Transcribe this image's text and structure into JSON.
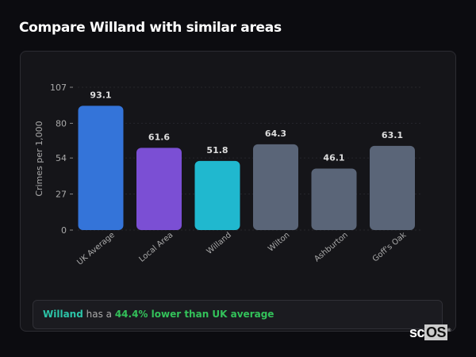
{
  "header": {
    "title": "Compare Willand with similar areas"
  },
  "chart_data": {
    "type": "bar",
    "categories": [
      "UK Average",
      "Local Area",
      "Willand",
      "Wilton",
      "Ashburton",
      "Goff's Oak"
    ],
    "values": [
      93.1,
      61.6,
      51.8,
      64.3,
      46.1,
      63.1
    ],
    "data_labels": [
      "93.1",
      "61.6",
      "51.8",
      "64.3",
      "46.1",
      "63.1"
    ],
    "colors": [
      "#3474d9",
      "#7b4fd4",
      "#20b8cf",
      "#5a6578",
      "#5a6578",
      "#5a6578"
    ],
    "ylabel": "Crimes per 1,000",
    "xlabel": "",
    "ylim": [
      0,
      107
    ],
    "yticks": [
      0,
      27,
      54,
      80,
      107
    ],
    "grid": true
  },
  "summary": {
    "area": "Willand",
    "middle": " has a ",
    "comparison": "44.4% lower than UK average"
  },
  "logo": {
    "text_a": "sc",
    "text_b": "OS",
    "mark": "®"
  }
}
